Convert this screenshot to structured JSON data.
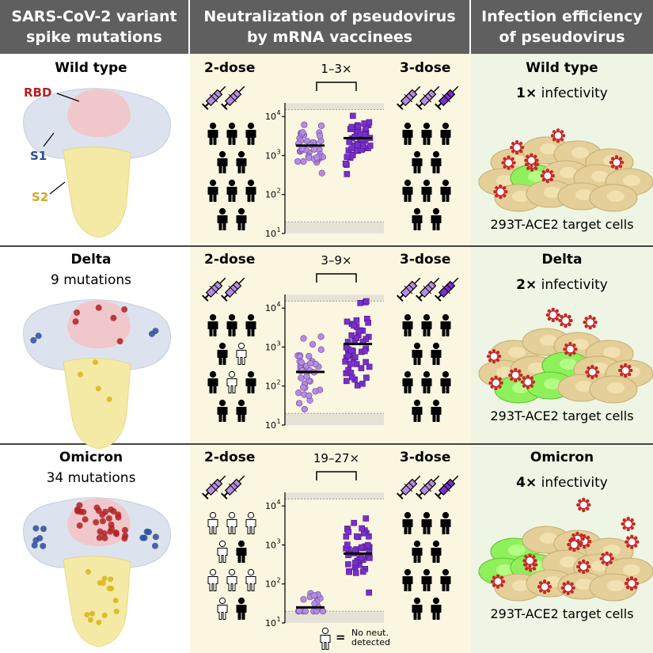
{
  "headers": {
    "col1": [
      "SARS-CoV-2 variant",
      "spike mutations"
    ],
    "col2": [
      "Neutralization of pseudovirus",
      "by mRNA vaccinees"
    ],
    "col3": [
      "Infection efficiency",
      "of pseudovirus"
    ]
  },
  "colors": {
    "header_bg": "#5f5f5f",
    "middle_bg": "#fbf6e0",
    "right_bg": "#eef5e4",
    "dose2": "#b58de0",
    "dose3": "#7a2ecc",
    "rbd_red": "#b22222",
    "s1_blue": "#2b4f9a",
    "s2_yellow": "#d9a520"
  },
  "spike_labels": {
    "rbd": "RBD",
    "s1": "S1",
    "s2": "S2"
  },
  "dose_labels": {
    "two": "2-dose",
    "three": "3-dose"
  },
  "cells_label": "293T-ACE2 target cells",
  "infectivity_word": "infectivity",
  "legend": {
    "symbol": "=",
    "line1": "No neut.",
    "line2": "detected"
  },
  "axis_ticks": [
    "10",
    "10",
    "10",
    "10"
  ],
  "axis_exponents": [
    "4",
    "3",
    "2",
    "1"
  ],
  "rows": [
    {
      "variant": "Wild type",
      "mutations": "",
      "fold": "1–3×",
      "infectivity_fold": "1×",
      "not_detected_2dose": 0,
      "chart": {
        "dose2_median": 1800,
        "dose3_median": 2800,
        "dose2_range": [
          200,
          15000
        ],
        "dose3_range": [
          300,
          15000
        ]
      }
    },
    {
      "variant": "Delta",
      "mutations": "9 mutations",
      "fold": "3–9×",
      "infectivity_fold": "2×",
      "not_detected_2dose": 2,
      "chart": {
        "dose2_median": 230,
        "dose3_median": 1200,
        "dose2_range": [
          20,
          3000
        ],
        "dose3_range": [
          40,
          15000
        ]
      }
    },
    {
      "variant": "Omicron",
      "mutations": "34 mutations",
      "fold": "19–27×",
      "infectivity_fold": "4×",
      "not_detected_2dose": 8,
      "chart": {
        "dose2_median": 25,
        "dose3_median": 600,
        "dose2_range": [
          20,
          250
        ],
        "dose3_range": [
          60,
          8000
        ]
      }
    }
  ]
}
